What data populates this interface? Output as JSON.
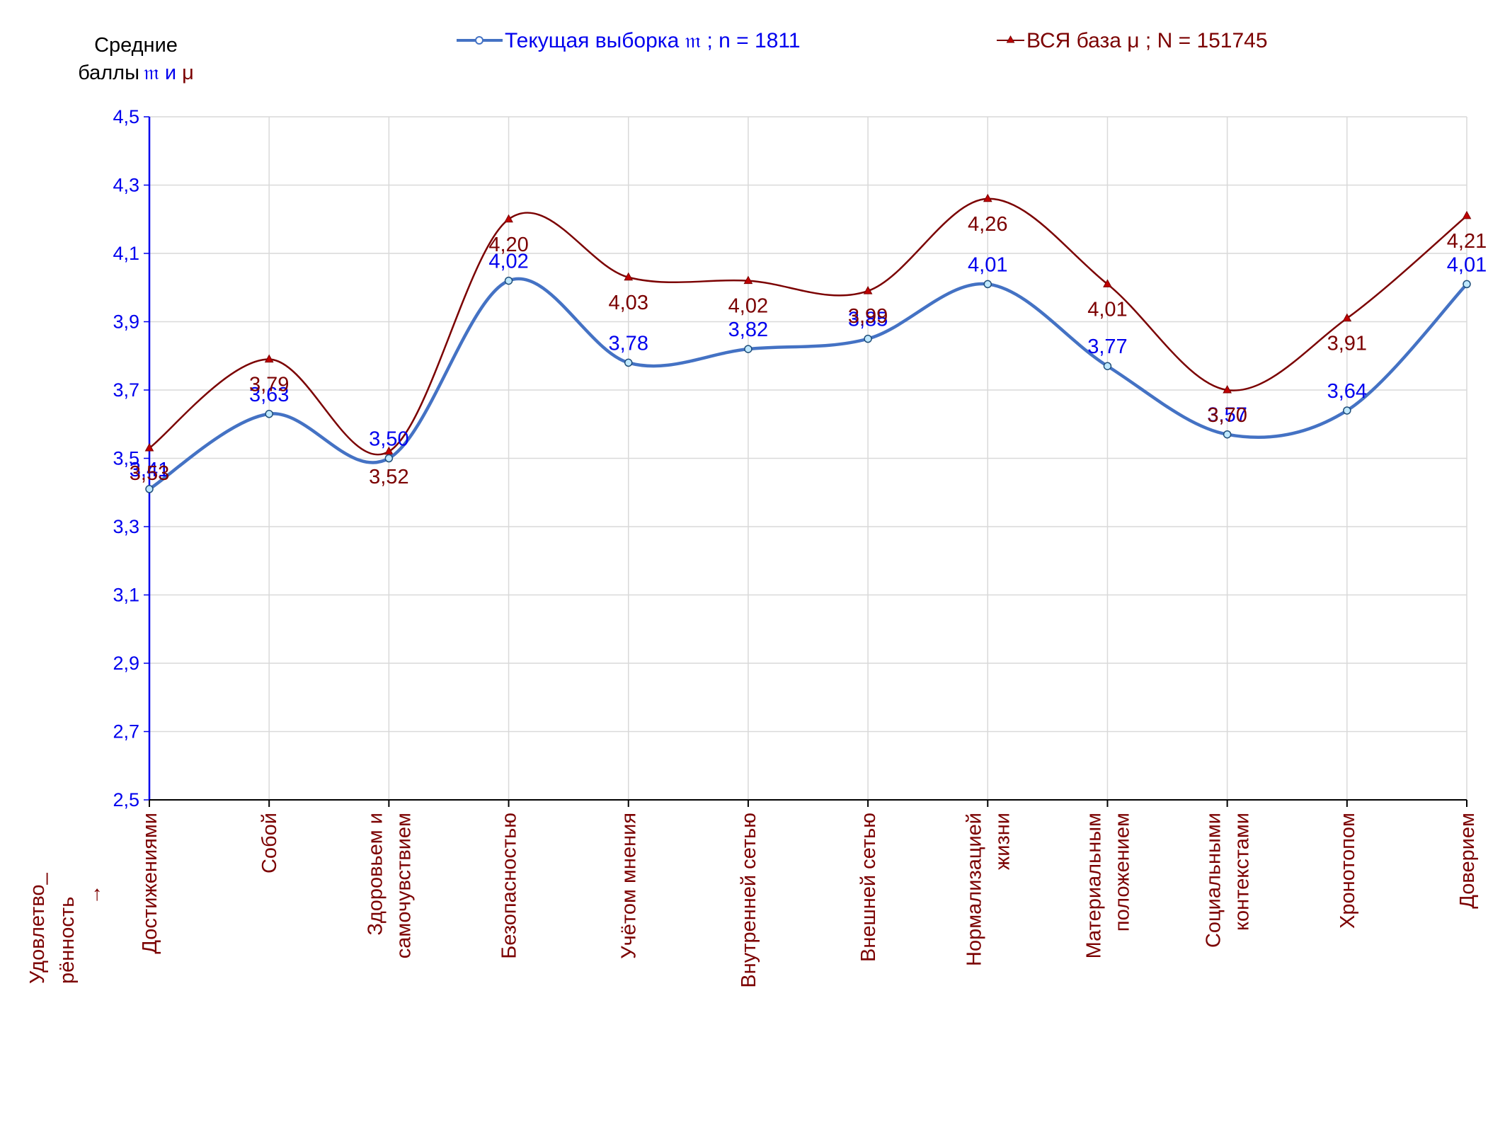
{
  "chart_data": {
    "type": "line",
    "y_title_lines": [
      "Средние",
      "баллы"
    ],
    "y_title_sym1": "𝔪",
    "y_title_and": " и ",
    "y_title_sym2": "μ",
    "x_hint_lines": [
      "Удовлетво_",
      "рённость",
      "→"
    ],
    "categories": [
      [
        "Достижениями"
      ],
      [
        "Собой"
      ],
      [
        "Здоровьем и",
        "самочувствием"
      ],
      [
        "Безопасностью"
      ],
      [
        "Учётом мнения"
      ],
      [
        "Внутренней сетью"
      ],
      [
        "Внешней сетью"
      ],
      [
        "Нормализацией",
        "жизни"
      ],
      [
        "Материальным",
        "положением"
      ],
      [
        "Социальными",
        "контекстами"
      ],
      [
        "Хронотопом"
      ],
      [
        "Доверием"
      ]
    ],
    "ylim": [
      2.5,
      4.5
    ],
    "yticks": [
      "2,5",
      "2,7",
      "2,9",
      "3,1",
      "3,3",
      "3,5",
      "3,7",
      "3,9",
      "4,1",
      "4,3",
      "4,5"
    ],
    "grid": true,
    "legend_position": "top",
    "series": [
      {
        "name": "Текущая выборка 𝔪 ; n = 1811",
        "color": "#4472c4",
        "label_color": "#0000ee",
        "marker": "circle",
        "values": [
          3.41,
          3.63,
          3.5,
          4.02,
          3.78,
          3.82,
          3.85,
          4.01,
          3.77,
          3.57,
          3.64,
          4.01
        ],
        "labels": [
          "3,41",
          "3,63",
          "3,50",
          "4,02",
          "3,78",
          "3,82",
          "3,85",
          "4,01",
          "3,77",
          "3,57",
          "3,64",
          "4,01"
        ]
      },
      {
        "name": "ВСЯ база μ ; N = 151745",
        "color": "#7b0000",
        "label_color": "#7b0000",
        "marker": "triangle",
        "values": [
          3.53,
          3.79,
          3.52,
          4.2,
          4.03,
          4.02,
          3.99,
          4.26,
          4.01,
          3.7,
          3.91,
          4.21
        ],
        "labels": [
          "3,53",
          "3,79",
          "3,52",
          "4,20",
          "4,03",
          "4,02",
          "3,99",
          "4,26",
          "4,01",
          "3,70",
          "3,91",
          "4,21"
        ]
      }
    ]
  },
  "colors": {
    "axis": "#0000ee",
    "grid": "#d9d9d9",
    "category_text": "#7b0000"
  }
}
